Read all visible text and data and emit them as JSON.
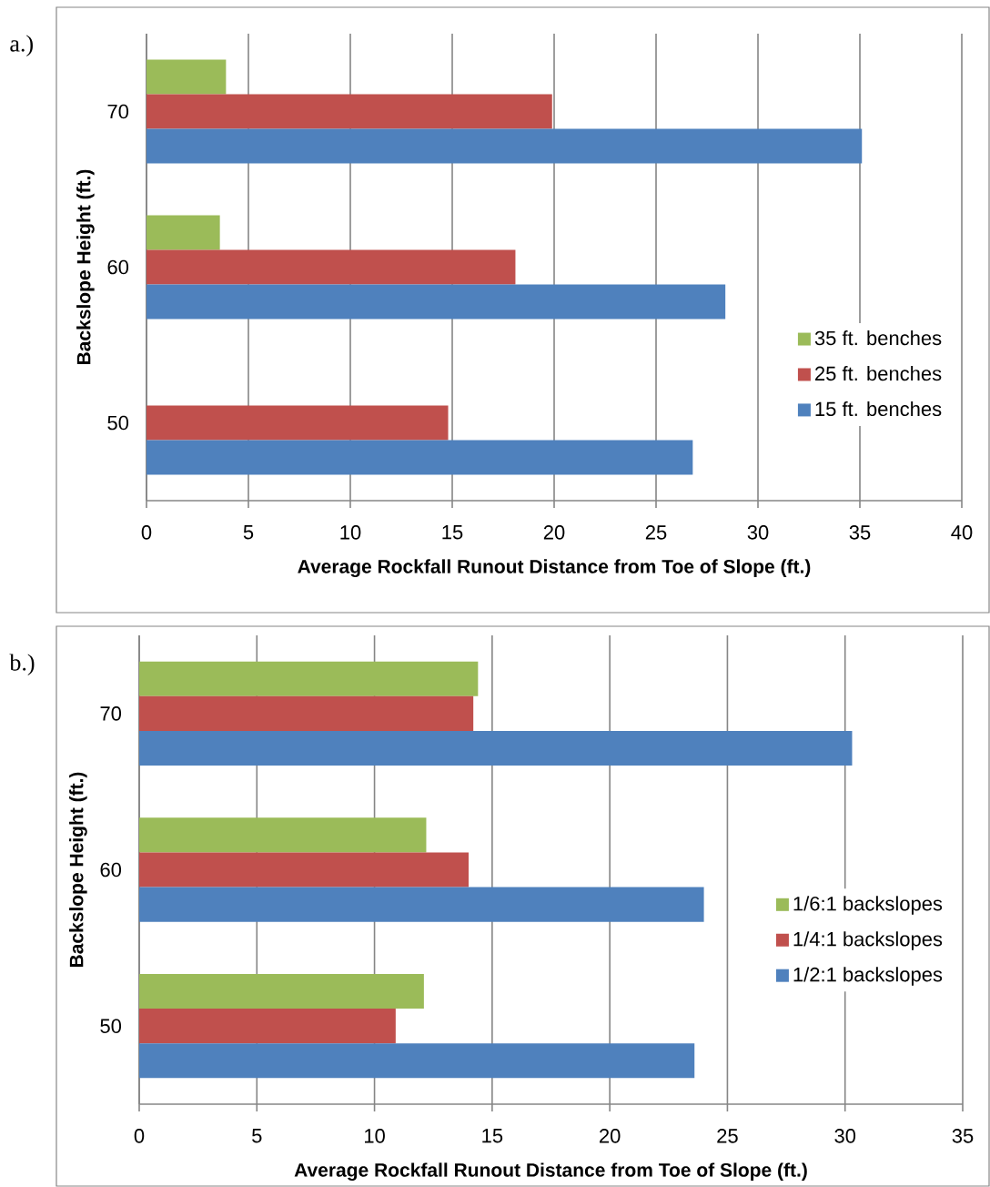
{
  "chart_data": [
    {
      "type": "bar",
      "orientation": "horizontal",
      "xlabel": "Average Rockfall Runout Distance from Toe of Slope (ft.)",
      "ylabel": "Backslope Height (ft.)",
      "categories": [
        "70",
        "60",
        "50"
      ],
      "series": [
        {
          "name": "35 ft. benches",
          "color": "#9bbb59",
          "values": [
            3.9,
            3.6,
            null
          ]
        },
        {
          "name": "25 ft. benches",
          "color": "#c0504d",
          "values": [
            19.9,
            18.1,
            14.8
          ]
        },
        {
          "name": "15 ft. benches",
          "color": "#4f81bd",
          "values": [
            35.1,
            28.4,
            26.8
          ]
        }
      ],
      "xlim": [
        0,
        40
      ],
      "xticks": [
        0,
        5,
        10,
        15,
        20,
        25,
        30,
        35,
        40
      ],
      "grid": "x",
      "legend": "right",
      "annotations": [
        "a.)"
      ]
    },
    {
      "type": "bar",
      "orientation": "horizontal",
      "xlabel": "Average Rockfall Runout Distance from Toe of Slope (ft.)",
      "ylabel": "Backslope Height (ft.)",
      "categories": [
        "70",
        "60",
        "50"
      ],
      "series": [
        {
          "name": "1/6:1 backslopes",
          "color": "#9bbb59",
          "values": [
            14.4,
            12.2,
            12.1
          ]
        },
        {
          "name": "1/4:1 backslopes",
          "color": "#c0504d",
          "values": [
            14.2,
            14.0,
            10.9
          ]
        },
        {
          "name": "1/2:1 backslopes",
          "color": "#4f81bd",
          "values": [
            30.3,
            24.0,
            23.6
          ]
        }
      ],
      "xlim": [
        0,
        35
      ],
      "xticks": [
        0,
        5,
        10,
        15,
        20,
        25,
        30,
        35
      ],
      "grid": "x",
      "legend": "right",
      "annotations": [
        "b.)"
      ]
    }
  ]
}
